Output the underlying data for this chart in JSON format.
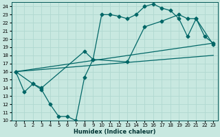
{
  "xlabel": "Humidex (Indice chaleur)",
  "bg_color": "#c8e8e0",
  "grid_color": "#a0d0d0",
  "line_color": "#006666",
  "xlim": [
    -0.5,
    23.5
  ],
  "ylim": [
    10,
    24.5
  ],
  "xticks": [
    0,
    1,
    2,
    3,
    4,
    5,
    6,
    7,
    8,
    9,
    10,
    11,
    12,
    13,
    14,
    15,
    16,
    17,
    18,
    19,
    20,
    21,
    22,
    23
  ],
  "yticks": [
    10,
    11,
    12,
    13,
    14,
    15,
    16,
    17,
    18,
    19,
    20,
    21,
    22,
    23,
    24
  ],
  "line1_x": [
    0,
    1,
    2,
    3,
    4,
    5,
    6,
    7,
    8,
    9,
    10,
    11,
    12,
    13,
    14,
    15,
    16,
    17,
    18,
    19,
    20,
    21,
    22,
    23
  ],
  "line1_y": [
    16.0,
    13.5,
    14.5,
    13.8,
    12.0,
    10.5,
    10.5,
    10.0,
    15.3,
    17.5,
    23.0,
    23.0,
    22.8,
    22.5,
    23.0,
    24.0,
    24.3,
    23.8,
    23.5,
    22.5,
    20.3,
    22.5,
    20.3,
    19.5
  ],
  "line2_x": [
    0,
    2,
    3,
    8,
    9,
    13,
    15,
    17,
    19,
    20,
    21,
    23
  ],
  "line2_y": [
    16.0,
    14.5,
    14.0,
    18.5,
    17.5,
    17.2,
    21.5,
    22.2,
    23.0,
    22.5,
    22.5,
    19.3
  ],
  "line3_x": [
    0,
    23
  ],
  "line3_y": [
    16.0,
    19.5
  ],
  "line4_x": [
    0,
    23
  ],
  "line4_y": [
    16.0,
    18.0
  ]
}
